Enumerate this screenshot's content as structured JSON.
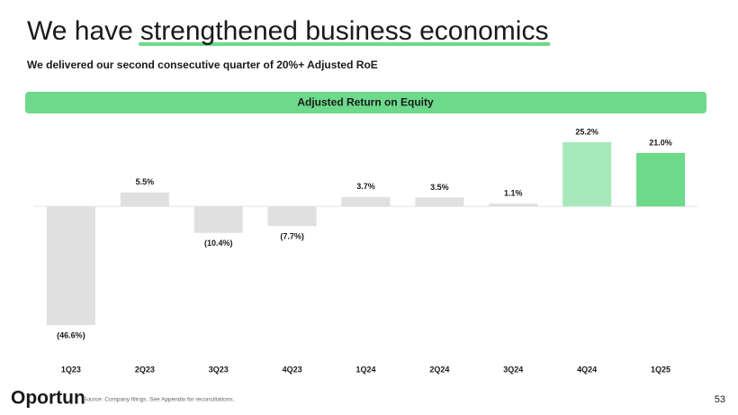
{
  "header": {
    "title": {
      "lead": "We have",
      "highlight": "strengthened business economics"
    },
    "subtitle": "We delivered our second consecutive quarter of 20%+ Adjusted RoE"
  },
  "chart_data": {
    "type": "bar",
    "title": "Adjusted Return on Equity",
    "categories": [
      "1Q23",
      "2Q23",
      "3Q23",
      "4Q23",
      "1Q24",
      "2Q24",
      "3Q24",
      "4Q24",
      "1Q25"
    ],
    "values": [
      -46.6,
      5.5,
      -10.4,
      -7.7,
      3.7,
      3.5,
      1.1,
      25.2,
      21.0
    ],
    "value_labels": [
      "(46.6%)",
      "5.5%",
      "(10.4%)",
      "(7.7%)",
      "3.7%",
      "3.5%",
      "1.1%",
      "25.2%",
      "21.0%"
    ],
    "colors": [
      "#e0e0e0",
      "#e0e0e0",
      "#e0e0e0",
      "#e0e0e0",
      "#e0e0e0",
      "#e0e0e0",
      "#e0e0e0",
      "#a8e9bb",
      "#6dd98b"
    ],
    "ylim": [
      -51.5,
      30.5
    ]
  },
  "footer": {
    "logo": "Oportun",
    "source": "Source: Company filings. See Appendix for reconciliations.",
    "page": "53"
  }
}
